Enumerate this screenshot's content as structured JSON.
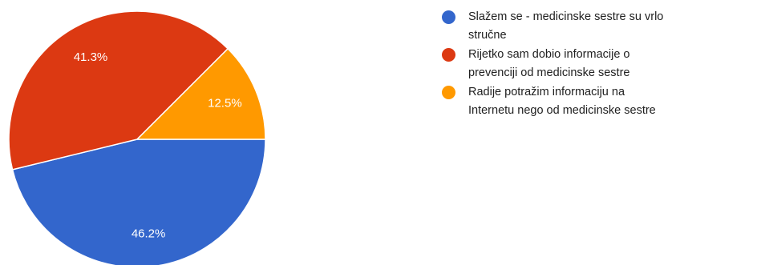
{
  "chart_data": {
    "type": "pie",
    "title": "",
    "slices": [
      {
        "label": "Slažem se - medicinske sestre su vrlo stručne",
        "value": 46.2,
        "display": "46.2%",
        "color": "#3366cc"
      },
      {
        "label": "Rijetko sam dobio informacije o prevenciji od medicinske sestre",
        "value": 41.3,
        "display": "41.3%",
        "color": "#dc3912"
      },
      {
        "label": "Radije potražim informaciju na Internetu nego od medicinske sestre",
        "value": 12.5,
        "display": "12.5%",
        "color": "#ff9900"
      }
    ],
    "legend_position": "right"
  },
  "legend": {
    "items": [
      {
        "line1": "Slažem se - medicinske sestre su vrlo",
        "line2": "stručne"
      },
      {
        "line1": "Rijetko sam dobio informacije o",
        "line2": "prevenciji od medicinske sestre"
      },
      {
        "line1": "Radije potražim informaciju na",
        "line2": "Internetu nego od medicinske sestre"
      }
    ]
  }
}
